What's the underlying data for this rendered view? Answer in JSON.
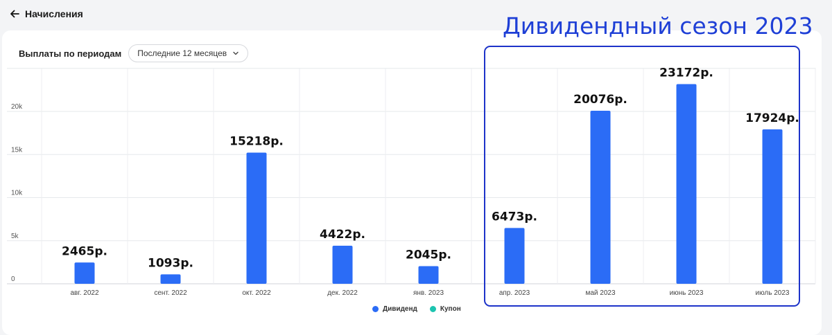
{
  "header": {
    "back_label": "Начисления"
  },
  "card": {
    "title": "Выплаты по периодам",
    "period_select": "Последние 12 месяцев"
  },
  "annotation": {
    "season_title": "Дивидендный сезон 2023"
  },
  "legend": [
    {
      "label": "Дивиденд",
      "color": "#2b6cf6"
    },
    {
      "label": "Купон",
      "color": "#1cc4b0"
    }
  ],
  "colors": {
    "bar": "#2b6cf6",
    "annotation": "#1d33c9"
  },
  "chart_data": {
    "type": "bar",
    "categories": [
      "авг. 2022",
      "сент. 2022",
      "окт. 2022",
      "дек. 2022",
      "янв. 2023",
      "апр. 2023",
      "май 2023",
      "июнь 2023",
      "июль 2023"
    ],
    "series": [
      {
        "name": "Дивиденд",
        "values": [
          2465,
          1093,
          15218,
          4422,
          2045,
          6473,
          20076,
          23172,
          17924
        ]
      },
      {
        "name": "Купон",
        "values": [
          0,
          0,
          0,
          0,
          0,
          0,
          0,
          0,
          0
        ]
      }
    ],
    "data_labels": [
      "2465р.",
      "1093р.",
      "15218р.",
      "4422р.",
      "2045р.",
      "6473р.",
      "20076р.",
      "23172р.",
      "17924р."
    ],
    "y_ticks": [
      {
        "value": 0,
        "label": "0"
      },
      {
        "value": 5000,
        "label": "5k"
      },
      {
        "value": 10000,
        "label": "10k"
      },
      {
        "value": 15000,
        "label": "15k"
      },
      {
        "value": 20000,
        "label": "20k"
      }
    ],
    "ylim": [
      0,
      25000
    ],
    "grid": true,
    "legend_position": "bottom-center"
  }
}
